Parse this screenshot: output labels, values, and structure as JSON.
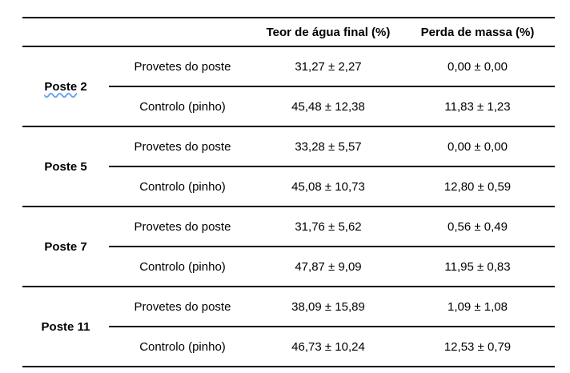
{
  "page": {
    "background_color": "#ffffff",
    "text_color": "#000000",
    "rule_color": "#000000",
    "spellcheck_underline_color": "#6da6f2"
  },
  "table": {
    "headers": {
      "teor": "Teor de água final (%)",
      "perda": "Perda de massa (%)"
    },
    "groups": [
      {
        "word": "Poste",
        "number": "2",
        "misspelled": true,
        "rows": [
          {
            "name": "Provetes do poste",
            "teor": "31,27 ± 2,27",
            "perda": "0,00 ± 0,00"
          },
          {
            "name": "Controlo (pinho)",
            "teor": "45,48 ± 12,38",
            "perda": "11,83 ± 1,23"
          }
        ]
      },
      {
        "word": "Poste",
        "number": "5",
        "misspelled": false,
        "rows": [
          {
            "name": "Provetes do poste",
            "teor": "33,28 ± 5,57",
            "perda": "0,00 ± 0,00"
          },
          {
            "name": "Controlo (pinho)",
            "teor": "45,08 ± 10,73",
            "perda": "12,80 ± 0,59"
          }
        ]
      },
      {
        "word": "Poste",
        "number": "7",
        "misspelled": false,
        "rows": [
          {
            "name": "Provetes do poste",
            "teor": "31,76 ± 5,62",
            "perda": "0,56 ± 0,49"
          },
          {
            "name": "Controlo (pinho)",
            "teor": "47,87 ± 9,09",
            "perda": "11,95 ± 0,83"
          }
        ]
      },
      {
        "word": "Poste",
        "number": "11",
        "misspelled": false,
        "rows": [
          {
            "name": "Provetes do poste",
            "teor": "38,09 ± 15,89",
            "perda": "1,09 ± 1,08"
          },
          {
            "name": "Controlo (pinho)",
            "teor": "46,73 ± 10,24",
            "perda": "12,53 ± 0,79"
          }
        ]
      }
    ]
  }
}
